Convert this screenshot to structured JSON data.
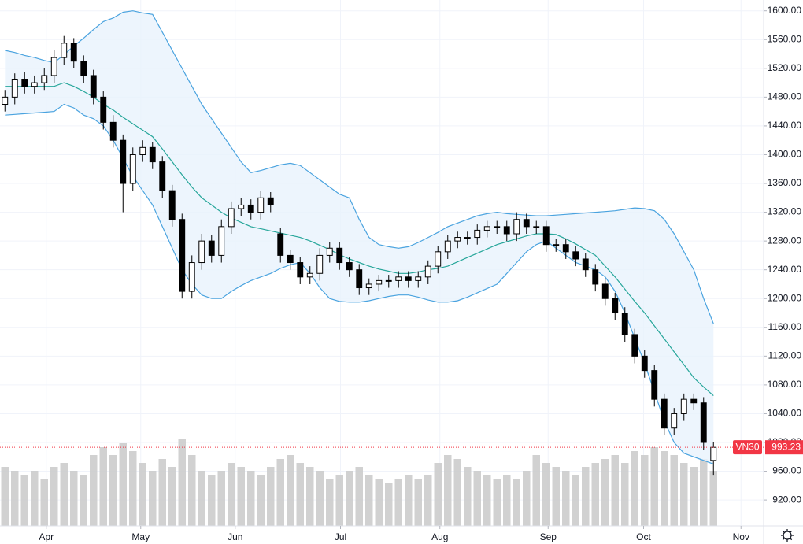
{
  "chart_data": {
    "type": "candlestick",
    "name": "VN30",
    "open": [
      1470,
      1480,
      1505,
      1495,
      1500,
      1510,
      1535,
      1555,
      1530,
      1510,
      1480,
      1445,
      1420,
      1360,
      1400,
      1410,
      1390,
      1350,
      1310,
      1210,
      1250,
      1280,
      1260,
      1300,
      1325,
      1330,
      1320,
      1340,
      1290,
      1260,
      1250,
      1230,
      1235,
      1260,
      1270,
      1250,
      1240,
      1215,
      1220,
      1225,
      1225,
      1230,
      1225,
      1230,
      1245,
      1265,
      1280,
      1285,
      1285,
      1295,
      1300,
      1300,
      1290,
      1310,
      1300,
      1300,
      1275,
      1275,
      1265,
      1255,
      1240,
      1220,
      1200,
      1180,
      1150,
      1120,
      1100,
      1060,
      1020,
      1040,
      1060,
      1055,
      975
    ],
    "high": [
      1490,
      1513,
      1515,
      1510,
      1520,
      1545,
      1565,
      1562,
      1538,
      1518,
      1488,
      1455,
      1428,
      1410,
      1420,
      1418,
      1398,
      1358,
      1318,
      1260,
      1290,
      1288,
      1310,
      1335,
      1340,
      1338,
      1350,
      1348,
      1298,
      1268,
      1258,
      1245,
      1270,
      1278,
      1278,
      1258,
      1248,
      1228,
      1233,
      1233,
      1238,
      1238,
      1238,
      1253,
      1273,
      1288,
      1293,
      1293,
      1303,
      1308,
      1308,
      1308,
      1320,
      1318,
      1308,
      1308,
      1283,
      1283,
      1273,
      1263,
      1248,
      1228,
      1208,
      1188,
      1158,
      1128,
      1108,
      1068,
      1048,
      1068,
      1068,
      1063,
      1001
    ],
    "low": [
      1460,
      1470,
      1485,
      1485,
      1490,
      1500,
      1525,
      1520,
      1500,
      1470,
      1435,
      1410,
      1320,
      1350,
      1390,
      1380,
      1340,
      1300,
      1200,
      1200,
      1240,
      1250,
      1250,
      1290,
      1315,
      1310,
      1310,
      1320,
      1250,
      1240,
      1220,
      1220,
      1225,
      1250,
      1240,
      1230,
      1205,
      1205,
      1210,
      1215,
      1215,
      1215,
      1215,
      1220,
      1235,
      1255,
      1270,
      1275,
      1275,
      1285,
      1290,
      1280,
      1280,
      1290,
      1290,
      1265,
      1265,
      1255,
      1245,
      1230,
      1210,
      1190,
      1170,
      1140,
      1110,
      1090,
      1050,
      1010,
      1010,
      1030,
      1045,
      990,
      955
    ],
    "close": [
      1480,
      1505,
      1495,
      1500,
      1510,
      1535,
      1555,
      1530,
      1510,
      1480,
      1445,
      1420,
      1360,
      1400,
      1410,
      1390,
      1350,
      1310,
      1210,
      1250,
      1280,
      1260,
      1300,
      1325,
      1330,
      1320,
      1340,
      1330,
      1260,
      1250,
      1230,
      1235,
      1260,
      1270,
      1250,
      1240,
      1215,
      1220,
      1225,
      1225,
      1230,
      1225,
      1230,
      1245,
      1265,
      1280,
      1285,
      1285,
      1295,
      1300,
      1300,
      1290,
      1310,
      1300,
      1300,
      1275,
      1275,
      1265,
      1255,
      1240,
      1220,
      1200,
      1180,
      1150,
      1120,
      1100,
      1060,
      1020,
      1040,
      1060,
      1055,
      1000,
      993.23
    ],
    "volume": [
      75,
      70,
      65,
      70,
      60,
      75,
      80,
      70,
      65,
      90,
      100,
      90,
      105,
      95,
      80,
      70,
      85,
      75,
      110,
      90,
      70,
      65,
      70,
      80,
      75,
      70,
      65,
      75,
      85,
      90,
      80,
      75,
      70,
      60,
      65,
      70,
      75,
      65,
      60,
      55,
      60,
      65,
      60,
      65,
      80,
      90,
      85,
      75,
      70,
      65,
      60,
      65,
      60,
      70,
      90,
      80,
      75,
      70,
      65,
      75,
      80,
      85,
      90,
      80,
      95,
      90,
      100,
      95,
      90,
      80,
      75,
      85,
      70
    ],
    "volume_ylim": [
      0,
      150
    ],
    "upper_band": [
      1545,
      1542,
      1538,
      1535,
      1531,
      1528,
      1539,
      1551,
      1562,
      1574,
      1585,
      1590,
      1598,
      1600,
      1597,
      1595,
      1570,
      1545,
      1520,
      1495,
      1470,
      1450,
      1430,
      1410,
      1390,
      1375,
      1378,
      1382,
      1386,
      1388,
      1385,
      1375,
      1365,
      1355,
      1345,
      1340,
      1310,
      1285,
      1275,
      1272,
      1270,
      1272,
      1278,
      1285,
      1292,
      1300,
      1305,
      1310,
      1315,
      1318,
      1320,
      1318,
      1317,
      1316,
      1315,
      1315,
      1316,
      1317,
      1318,
      1319,
      1320,
      1321,
      1322,
      1324,
      1326,
      1325,
      1322,
      1310,
      1290,
      1265,
      1240,
      1200,
      1165
    ],
    "middle_band": [
      1495,
      1495,
      1495,
      1495,
      1495,
      1495,
      1500,
      1495,
      1488,
      1480,
      1470,
      1462,
      1452,
      1443,
      1434,
      1425,
      1408,
      1390,
      1372,
      1355,
      1340,
      1330,
      1320,
      1312,
      1306,
      1300,
      1297,
      1294,
      1291,
      1288,
      1285,
      1280,
      1274,
      1268,
      1261,
      1255,
      1250,
      1245,
      1241,
      1238,
      1235,
      1235,
      1237,
      1240,
      1242,
      1245,
      1251,
      1257,
      1263,
      1269,
      1275,
      1279,
      1283,
      1287,
      1290,
      1290,
      1289,
      1283,
      1276,
      1268,
      1260,
      1245,
      1230,
      1213,
      1196,
      1180,
      1162,
      1144,
      1126,
      1108,
      1090,
      1077,
      1065
    ],
    "lower_band": [
      1455,
      1456,
      1457,
      1458,
      1459,
      1460,
      1470,
      1465,
      1455,
      1450,
      1440,
      1420,
      1395,
      1370,
      1350,
      1330,
      1300,
      1270,
      1240,
      1220,
      1205,
      1200,
      1200,
      1210,
      1218,
      1225,
      1230,
      1235,
      1242,
      1247,
      1250,
      1235,
      1215,
      1200,
      1196,
      1195,
      1195,
      1197,
      1200,
      1203,
      1205,
      1205,
      1202,
      1198,
      1195,
      1195,
      1197,
      1202,
      1208,
      1214,
      1220,
      1235,
      1250,
      1265,
      1275,
      1280,
      1270,
      1260,
      1250,
      1245,
      1240,
      1230,
      1210,
      1180,
      1145,
      1110,
      1070,
      1030,
      1000,
      985,
      980,
      975,
      970
    ],
    "band_color": "#4aa3df",
    "band_fill": "#e8f3fc",
    "middle_color": "#26a69a",
    "up_color": "#ffffff",
    "down_color": "#000000",
    "volume_color": "#c9c9c9",
    "last_price_color": "#f23645",
    "ylim": [
      884,
      1615
    ],
    "yticks": [
      {
        "value": 920,
        "label": "920.00"
      },
      {
        "value": 960,
        "label": "960.00"
      },
      {
        "value": 1000,
        "label": "1000.00"
      },
      {
        "value": 1040,
        "label": "1040.00"
      },
      {
        "value": 1080,
        "label": "1080.00"
      },
      {
        "value": 1120,
        "label": "1120.00"
      },
      {
        "value": 1160,
        "label": "1160.00"
      },
      {
        "value": 1200,
        "label": "1200.00"
      },
      {
        "value": 1240,
        "label": "1240.00"
      },
      {
        "value": 1280,
        "label": "1280.00"
      },
      {
        "value": 1320,
        "label": "1320.00"
      },
      {
        "value": 1360,
        "label": "1360.00"
      },
      {
        "value": 1400,
        "label": "1400.00"
      },
      {
        "value": 1440,
        "label": "1440.00"
      },
      {
        "value": 1480,
        "label": "1480.00"
      },
      {
        "value": 1520,
        "label": "1520.00"
      },
      {
        "value": 1560,
        "label": "1560.00"
      },
      {
        "value": 1600,
        "label": "1600.00"
      }
    ],
    "xlim": [
      -0.5,
      77.1
    ],
    "xticks": [
      {
        "value": 4.2,
        "label": "Apr"
      },
      {
        "value": 13.8,
        "label": "May"
      },
      {
        "value": 23.4,
        "label": "Jun"
      },
      {
        "value": 34.1,
        "label": "Jul"
      },
      {
        "value": 44.2,
        "label": "Aug"
      },
      {
        "value": 55.2,
        "label": "Sep"
      },
      {
        "value": 64.9,
        "label": "Oct"
      },
      {
        "value": 74.8,
        "label": "Nov"
      }
    ],
    "grid": true
  }
}
